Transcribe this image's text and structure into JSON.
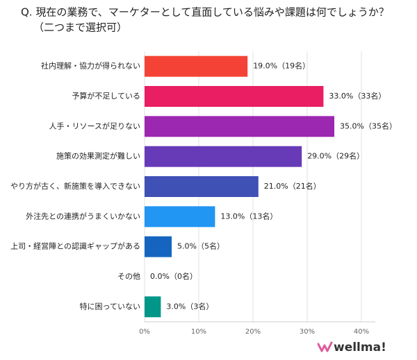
{
  "chart_data": {
    "type": "bar",
    "orientation": "horizontal",
    "title": "Q. 現在の業務で、マーケターとして直面している悩みや課題は何でしょうか？",
    "subtitle": "（二つまで選択可）",
    "categories": [
      "社内理解・協力が得られない",
      "予算が不足している",
      "人手・リソースが足りない",
      "施策の効果測定が難しい",
      "やり方が古く、新施策を導入できない",
      "外注先との連携がうまくいかない",
      "上司・経営陣との認識ギャップがある",
      "その他",
      "特に困っていない"
    ],
    "values": [
      19,
      33,
      35,
      29,
      21,
      13,
      5,
      0,
      3
    ],
    "value_labels": [
      "19.0%（19名）",
      "33.0%（33名）",
      "35.0%（35名）",
      "29.0%（29名）",
      "21.0%（21名）",
      "13.0%（13名）",
      "5.0%（5名）",
      "0.0%（0名）",
      "3.0%（3名）"
    ],
    "colors": [
      "#f44336",
      "#e91e63",
      "#9c27b0",
      "#673ab7",
      "#3f51b5",
      "#2196f3",
      "#1565c0",
      "#1e88e5",
      "#009688"
    ],
    "xlim": [
      0,
      40
    ],
    "xticks": [
      {
        "value": 0,
        "label": "0%"
      },
      {
        "value": 10,
        "label": "10%"
      },
      {
        "value": 20,
        "label": "20%"
      },
      {
        "value": 30,
        "label": "30%"
      },
      {
        "value": 40,
        "label": "40%"
      }
    ],
    "grid": true
  },
  "logo": "wellma!"
}
